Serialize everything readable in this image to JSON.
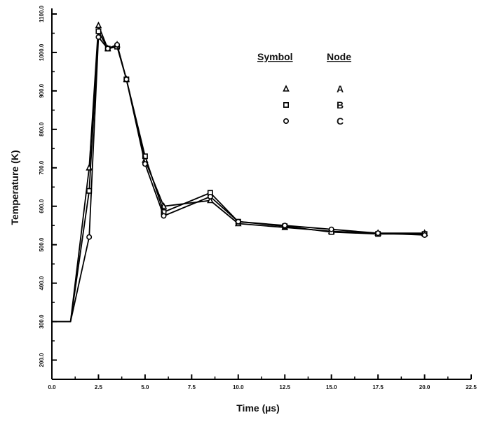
{
  "chart_data": {
    "type": "line",
    "xlabel": "Time (µs)",
    "ylabel": "Temperature (K)",
    "xlim": [
      0,
      22.5
    ],
    "ylim": [
      150,
      1100
    ],
    "x_ticks": [
      "0.0",
      "2.5",
      "5.0",
      "7.5",
      "10.0",
      "12.5",
      "15.0",
      "17.5",
      "20.0",
      "22.5"
    ],
    "y_ticks": [
      {
        "value": 1100,
        "label": "1100.0"
      },
      {
        "value": 1000,
        "label": "1000.0"
      },
      {
        "value": 900,
        "label": "900.0"
      },
      {
        "value": 800,
        "label": "800.0"
      },
      {
        "value": 700,
        "label": "700.0"
      },
      {
        "value": 600,
        "label": "600.0"
      },
      {
        "value": 500,
        "label": "500.0"
      },
      {
        "value": 400,
        "label": "400.0"
      },
      {
        "value": 300,
        "label": "300.0"
      },
      {
        "value": 200,
        "label": "200.0"
      }
    ],
    "grid": false,
    "legend": {
      "placement": "top-right",
      "headers": [
        "Symbol",
        "Node"
      ],
      "entries": [
        {
          "symbol": "triangle",
          "node": "A"
        },
        {
          "symbol": "square",
          "node": "B"
        },
        {
          "symbol": "circle",
          "node": "C"
        }
      ]
    },
    "series": [
      {
        "node": "A",
        "symbol": "triangle",
        "x": [
          0.0,
          1.0,
          2.0,
          2.5,
          3.0,
          3.5,
          4.0,
          5.0,
          6.0,
          8.5,
          10.0,
          12.5,
          15.0,
          17.5,
          20.0
        ],
        "y": [
          300,
          300,
          700,
          1070,
          1010,
          1020,
          930,
          720,
          600,
          615,
          555,
          545,
          535,
          530,
          530
        ]
      },
      {
        "node": "B",
        "symbol": "square",
        "x": [
          0.0,
          1.0,
          2.0,
          2.5,
          3.0,
          3.5,
          4.0,
          5.0,
          6.0,
          8.5,
          10.0,
          12.5,
          15.0,
          17.5,
          20.0
        ],
        "y": [
          300,
          300,
          640,
          1055,
          1010,
          1015,
          930,
          730,
          585,
          635,
          560,
          548,
          533,
          528,
          528
        ]
      },
      {
        "node": "C",
        "symbol": "circle",
        "x": [
          0.0,
          1.0,
          2.0,
          2.5,
          3.0,
          3.5,
          4.0,
          5.0,
          6.0,
          8.5,
          10.0,
          12.5,
          15.0,
          17.5,
          20.0
        ],
        "y": [
          300,
          300,
          520,
          1040,
          1010,
          1020,
          930,
          710,
          575,
          625,
          560,
          550,
          540,
          530,
          525
        ]
      }
    ]
  }
}
